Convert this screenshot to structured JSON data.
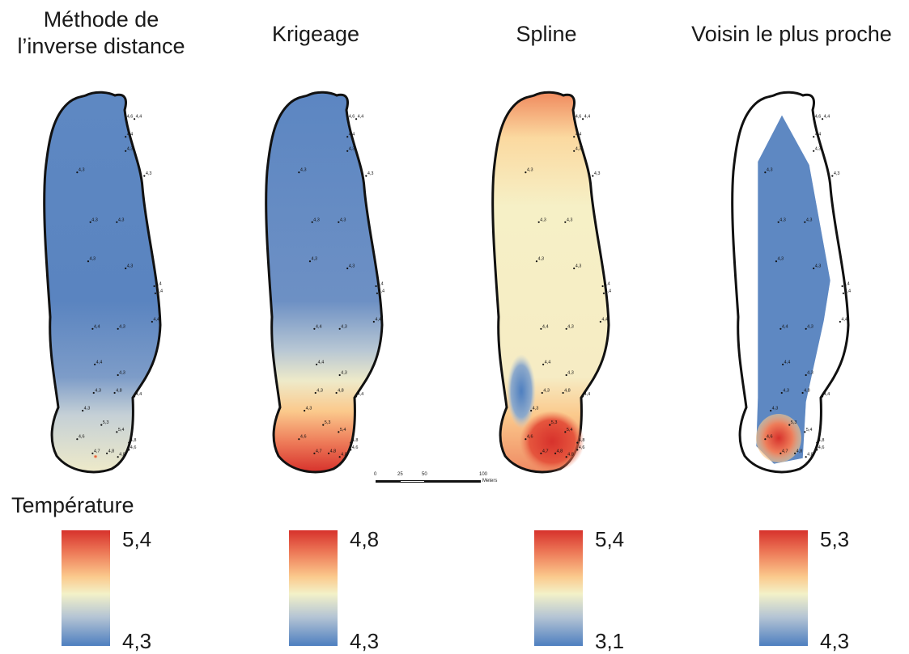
{
  "titles": {
    "idw": "Méthode de\nl’inverse distance",
    "krig": "Krigeage",
    "spline": "Spline",
    "nn": "Voisin le plus proche"
  },
  "legend_title": "Température",
  "legends": [
    {
      "max": "5,4",
      "min": "4,3"
    },
    {
      "max": "4,8",
      "min": "4,3"
    },
    {
      "max": "5,4",
      "min": "3,1"
    },
    {
      "max": "5,3",
      "min": "4,3"
    }
  ],
  "scale_bar": {
    "ticks": [
      "0",
      "25",
      "50",
      "100"
    ],
    "unit": "Meters"
  },
  "points": [
    {
      "label": "4,6",
      "x": 0.7,
      "y": 0.03
    },
    {
      "label": "4,4",
      "x": 0.78,
      "y": 0.03
    },
    {
      "label": "4,4",
      "x": 0.7,
      "y": 0.08
    },
    {
      "label": "4,3",
      "x": 0.7,
      "y": 0.12
    },
    {
      "label": "4,3",
      "x": 0.26,
      "y": 0.18
    },
    {
      "label": "4,3",
      "x": 0.87,
      "y": 0.19
    },
    {
      "label": "4,3",
      "x": 0.38,
      "y": 0.32
    },
    {
      "label": "4,3",
      "x": 0.62,
      "y": 0.32
    },
    {
      "label": "4,3",
      "x": 0.36,
      "y": 0.43
    },
    {
      "label": "4,3",
      "x": 0.7,
      "y": 0.45
    },
    {
      "label": "4,4",
      "x": 0.96,
      "y": 0.5
    },
    {
      "label": "4,4",
      "x": 0.97,
      "y": 0.52
    },
    {
      "label": "4,4",
      "x": 0.94,
      "y": 0.6
    },
    {
      "label": "4,4",
      "x": 0.4,
      "y": 0.62
    },
    {
      "label": "4,3",
      "x": 0.63,
      "y": 0.62
    },
    {
      "label": "4,4",
      "x": 0.42,
      "y": 0.72
    },
    {
      "label": "4,3",
      "x": 0.63,
      "y": 0.75
    },
    {
      "label": "4,3",
      "x": 0.41,
      "y": 0.8
    },
    {
      "label": "4,8",
      "x": 0.6,
      "y": 0.8
    },
    {
      "label": "4,4",
      "x": 0.78,
      "y": 0.81
    },
    {
      "label": "4,3",
      "x": 0.31,
      "y": 0.85
    },
    {
      "label": "5,3",
      "x": 0.48,
      "y": 0.89
    },
    {
      "label": "5,4",
      "x": 0.62,
      "y": 0.91
    },
    {
      "label": "4,6",
      "x": 0.26,
      "y": 0.93
    },
    {
      "label": "4,8",
      "x": 0.73,
      "y": 0.94
    },
    {
      "label": "4,6",
      "x": 0.73,
      "y": 0.96
    },
    {
      "label": "4,7",
      "x": 0.4,
      "y": 0.97
    },
    {
      "label": "4,8",
      "x": 0.53,
      "y": 0.97
    },
    {
      "label": "4,8",
      "x": 0.63,
      "y": 0.98
    }
  ]
}
